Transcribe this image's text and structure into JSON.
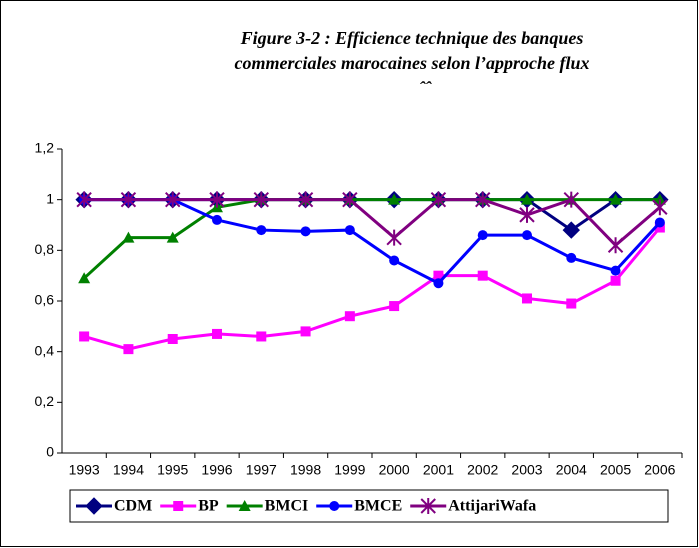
{
  "chart_data": {
    "type": "line",
    "title_lines": [
      "Figure 3-2 : Efficience technique des banques",
      "commerciales marocaines selon l’approche flux"
    ],
    "subtitle": "ˆˆ",
    "categories": [
      "1993",
      "1994",
      "1995",
      "1996",
      "1997",
      "1998",
      "1999",
      "2000",
      "2001",
      "2002",
      "2003",
      "2004",
      "2005",
      "2006"
    ],
    "series": [
      {
        "name": "CDM",
        "color": "#000080",
        "marker": "diamond",
        "values": [
          1,
          1,
          1,
          1,
          1,
          1,
          1,
          1,
          1,
          1,
          1,
          0.88,
          1,
          1
        ]
      },
      {
        "name": "BP",
        "color": "#ff00ff",
        "marker": "square",
        "values": [
          0.46,
          0.41,
          0.45,
          0.47,
          0.46,
          0.48,
          0.54,
          0.58,
          0.7,
          0.7,
          0.61,
          0.59,
          0.68,
          0.89
        ]
      },
      {
        "name": "BMCI",
        "color": "#008000",
        "marker": "triangle",
        "values": [
          0.69,
          0.85,
          0.85,
          0.97,
          1,
          1,
          1,
          1,
          1,
          1,
          1,
          1,
          1,
          1
        ]
      },
      {
        "name": "BMCE",
        "color": "#0000ff",
        "marker": "circle",
        "values": [
          1,
          1,
          1,
          0.92,
          0.88,
          0.875,
          0.88,
          0.76,
          0.67,
          0.86,
          0.86,
          0.77,
          0.72,
          0.91
        ]
      },
      {
        "name": "AttijariWafa",
        "color": "#800080",
        "marker": "star",
        "values": [
          1,
          1,
          1,
          1,
          1,
          1,
          1,
          0.85,
          1,
          1,
          0.94,
          1,
          0.82,
          0.97
        ]
      }
    ],
    "ylim": [
      0,
      1.2
    ],
    "yticks": [
      0,
      {
        "value": 0.2,
        "label": "0,2"
      },
      {
        "value": 0.4,
        "label": "0,4"
      },
      {
        "value": 0.6,
        "label": "0,6"
      },
      {
        "value": 0.8,
        "label": "0,8"
      },
      1,
      {
        "value": 1.2,
        "label": "1,2"
      }
    ],
    "grid": false
  }
}
